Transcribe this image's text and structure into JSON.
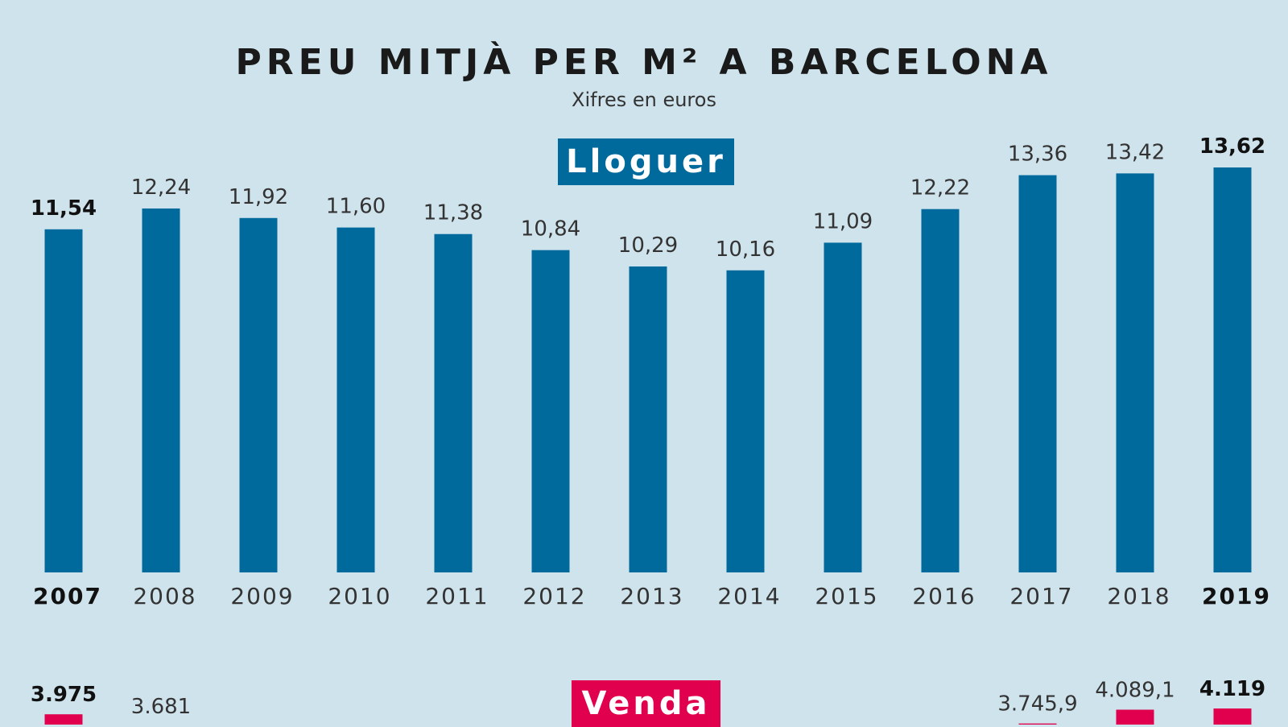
{
  "title": "PREU MITJÀ PER M² A BARCELONA",
  "subtitle": "Xifres en euros",
  "colors": {
    "background": "#cfe3ec",
    "rent": "#006a9c",
    "sale": "#e0004d"
  },
  "chart_data": [
    {
      "type": "bar",
      "title": "Lloguer",
      "categories": [
        "2007",
        "2008",
        "2009",
        "2010",
        "2011",
        "2012",
        "2013",
        "2014",
        "2015",
        "2016",
        "2017",
        "2018",
        "2019"
      ],
      "values": [
        11.54,
        12.24,
        11.92,
        11.6,
        11.38,
        10.84,
        10.29,
        10.16,
        11.09,
        12.22,
        13.36,
        13.42,
        13.62
      ],
      "labels": [
        "11,54",
        "12,24",
        "11,92",
        "11,60",
        "11,38",
        "10,84",
        "10,29",
        "10,16",
        "11,09",
        "12,22",
        "13,36",
        "13,42",
        "13,62"
      ],
      "bold_indices": [
        0,
        12
      ],
      "ylim": [
        0,
        13.62
      ]
    },
    {
      "type": "bar",
      "title": "Venda",
      "categories": [
        "2007",
        "2008",
        "2009",
        "2010",
        "2011",
        "2012",
        "2013",
        "2014",
        "2015",
        "2016",
        "2017",
        "2018",
        "2019"
      ],
      "visible_values": {
        "2007": 3975,
        "2008": 3681,
        "2017": 3745.9,
        "2018": 4089.1,
        "2019": 4119
      },
      "visible_labels": {
        "2007": "3.975",
        "2008": "3.681",
        "2017": "3.745,9",
        "2018": "4.089,1",
        "2019": "4.119"
      },
      "bold_years": [
        "2007",
        "2019"
      ]
    }
  ]
}
